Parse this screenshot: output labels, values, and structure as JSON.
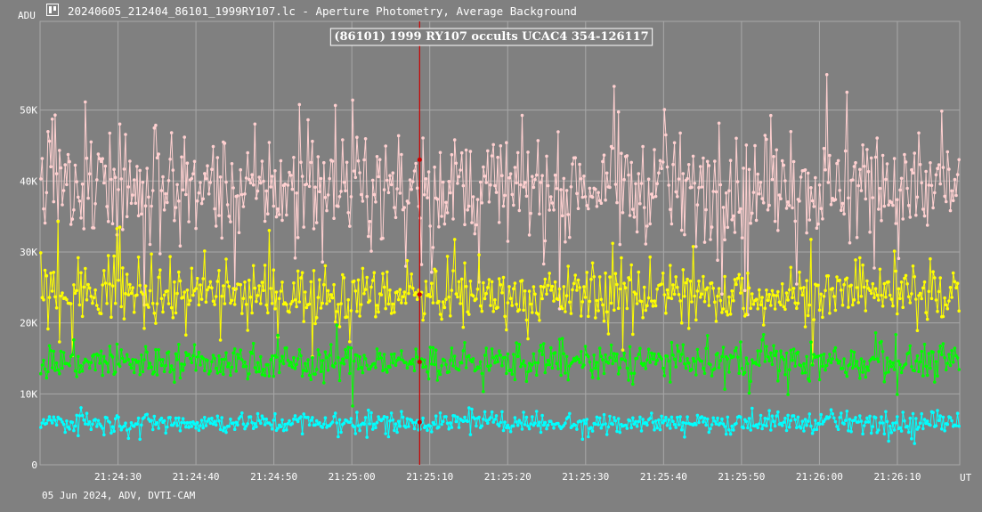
{
  "window": {
    "title": "20240605_212404_86101_1999RY107.lc - Aperture Photometry, Average Background",
    "icon": "lightcurve-app-icon"
  },
  "footer": {
    "text": "05 Jun 2024, ADV, DVTI-CAM"
  },
  "colors": {
    "background": "#808080",
    "grid": "#a8a8a8",
    "text": "#ffffff",
    "marker_line": "#cc0000"
  },
  "chart_data": {
    "type": "line",
    "title": "(86101) 1999 RY107 occults UCAC4 354-126117",
    "ylabel": "ADU",
    "xlabel": "UT",
    "ylim": [
      0,
      62500
    ],
    "y_ticks": [
      {
        "value": 0,
        "label": "0"
      },
      {
        "value": 10000,
        "label": "10K"
      },
      {
        "value": 20000,
        "label": "20K"
      },
      {
        "value": 30000,
        "label": "30K"
      },
      {
        "value": 40000,
        "label": "40K"
      },
      {
        "value": 50000,
        "label": "50K"
      }
    ],
    "x_time_range": [
      "21:24:20",
      "21:26:18"
    ],
    "x_ticks": [
      "21:24:30",
      "21:24:40",
      "21:24:50",
      "21:25:00",
      "21:25:10",
      "21:25:20",
      "21:25:30",
      "21:25:40",
      "21:25:50",
      "21:26:00",
      "21:26:10"
    ],
    "grid": true,
    "marker_time": "21:25:08.7",
    "series": [
      {
        "color": "#ffd0d0",
        "mean": 39000,
        "spread": 6500,
        "spikes": 14000
      },
      {
        "color": "#ffff00",
        "mean": 24000,
        "spread": 3500,
        "spikes": 7000
      },
      {
        "color": "#00ff00",
        "mean": 14500,
        "spread": 2300,
        "spikes": 3500
      },
      {
        "color": "#00ffff",
        "mean": 6000,
        "spread": 1300,
        "spikes": 2200
      }
    ]
  }
}
